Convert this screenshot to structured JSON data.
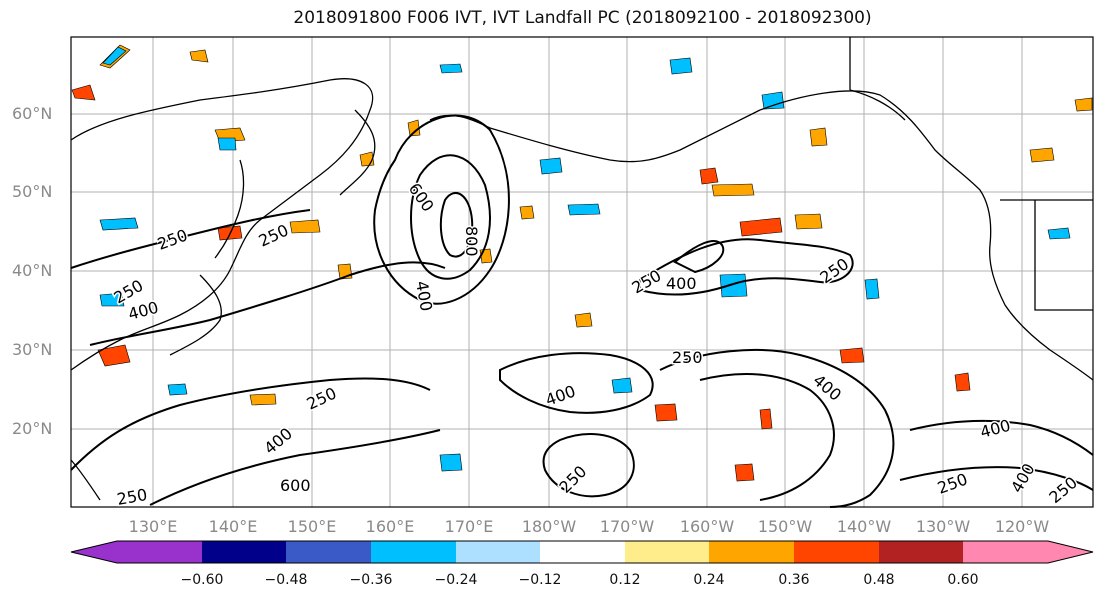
{
  "title": "2018091800 F006 IVT, IVT Landfall PC (2018092100 - 2018092300)",
  "lat_labels": [
    "60°N",
    "50°N",
    "40°N",
    "30°N",
    "20°N"
  ],
  "lon_labels": [
    "130°E",
    "140°E",
    "150°E",
    "160°E",
    "170°E",
    "180°W",
    "170°W",
    "160°W",
    "150°W",
    "140°W",
    "130°W",
    "120°W"
  ],
  "contour_labels": {
    "c600_north": "600",
    "c800": "800",
    "c400_north": "400",
    "c250_japan": "250",
    "c250_kamchatka": "250",
    "c250_east_pac": "250",
    "c250_mid_pac": "250",
    "c400_mid_pac": "400",
    "c250_central": "250",
    "c400_central": "400",
    "c250_hawaii": "250",
    "c400_hawaii": "400",
    "c400_east": "400",
    "c250_west_sub": "250",
    "c400_west_sub": "400",
    "c600_west_sub": "600",
    "c250_sw": "250",
    "c250_south": "250",
    "c250_se": "250",
    "c400_se": "400",
    "c250_far_se": "250",
    "c400_far_east": "400"
  },
  "colorbar": {
    "colors": [
      "#9932CC",
      "#00008B",
      "#3A5BC7",
      "#00BFFF",
      "#ADE0FF",
      "#FFFFFF",
      "#FFEC8B",
      "#FFA500",
      "#FF4500",
      "#B22222",
      "#FF87B0"
    ],
    "tick_labels": [
      "−0.60",
      "−0.48",
      "−0.36",
      "−0.24",
      "−0.12",
      "0.12",
      "0.24",
      "0.36",
      "0.48",
      "0.60"
    ]
  },
  "colors": {
    "land": "#000000",
    "contour": "#000000",
    "grid": "#b0b0b0"
  }
}
